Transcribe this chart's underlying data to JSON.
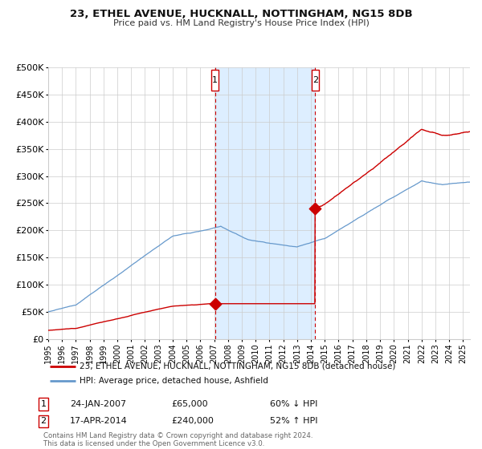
{
  "title": "23, ETHEL AVENUE, HUCKNALL, NOTTINGHAM, NG15 8DB",
  "subtitle": "Price paid vs. HM Land Registry's House Price Index (HPI)",
  "legend_line1": "23, ETHEL AVENUE, HUCKNALL, NOTTINGHAM, NG15 8DB (detached house)",
  "legend_line2": "HPI: Average price, detached house, Ashfield",
  "transaction1_date": 2007.07,
  "transaction1_price": 65000,
  "transaction1_label": "1",
  "transaction1_text_date": "24-JAN-2007",
  "transaction1_text_price": "£65,000",
  "transaction1_text_hpi": "60% ↓ HPI",
  "transaction2_date": 2014.3,
  "transaction2_price": 240000,
  "transaction2_label": "2",
  "transaction2_text_date": "17-APR-2014",
  "transaction2_text_price": "£240,000",
  "transaction2_text_hpi": "52% ↑ HPI",
  "xmin": 1995.0,
  "xmax": 2025.5,
  "ymin": 0,
  "ymax": 500000,
  "red_color": "#cc0000",
  "blue_color": "#6699cc",
  "shade_color": "#ddeeff",
  "grid_color": "#cccccc",
  "footnote_line1": "Contains HM Land Registry data © Crown copyright and database right 2024.",
  "footnote_line2": "This data is licensed under the Open Government Licence v3.0.",
  "yticks": [
    0,
    50000,
    100000,
    150000,
    200000,
    250000,
    300000,
    350000,
    400000,
    450000,
    500000
  ],
  "ytick_labels": [
    "£0",
    "£50K",
    "£100K",
    "£150K",
    "£200K",
    "£250K",
    "£300K",
    "£350K",
    "£400K",
    "£450K",
    "£500K"
  ],
  "xticks": [
    1995,
    1996,
    1997,
    1998,
    1999,
    2000,
    2001,
    2002,
    2003,
    2004,
    2005,
    2006,
    2007,
    2008,
    2009,
    2010,
    2011,
    2012,
    2013,
    2014,
    2015,
    2016,
    2017,
    2018,
    2019,
    2020,
    2021,
    2022,
    2023,
    2024,
    2025
  ],
  "bg_color": "#ffffff"
}
